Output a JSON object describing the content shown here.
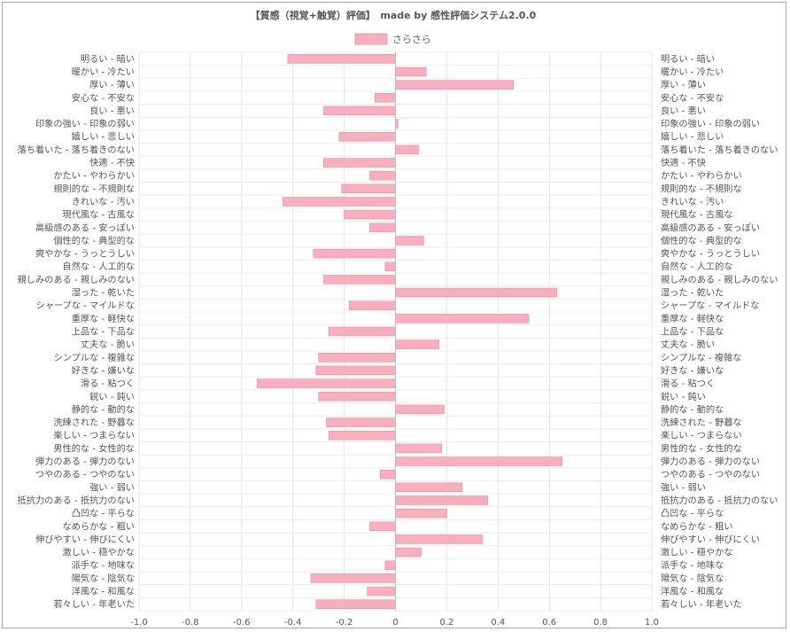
{
  "chart_data": {
    "type": "bar",
    "orientation": "horizontal",
    "title": "【質感（視覚+触覚）評価】　made by 感性評価システム2.0.0",
    "xlim": [
      -1.0,
      1.0
    ],
    "x_ticks": [
      "-1.0",
      "-0.8",
      "-0.6",
      "-0.4",
      "-0.2",
      "0",
      "0.2",
      "0.4",
      "0.6",
      "0.8",
      "1.0"
    ],
    "grid": true,
    "legend_position": "top",
    "bar_color": "#f6afbf",
    "bar_edge_color": "#ef8aa2",
    "categories": [
      "明るい - 暗い",
      "暖かい - 冷たい",
      "厚い - 薄い",
      "安心な - 不安な",
      "良い - 悪い",
      "印象の強い - 印象の弱い",
      "嬉しい - 悲しい",
      "落ち着いた - 落ち着きのない",
      "快適 - 不快",
      "かたい - やわらかい",
      "規則的な - 不規則な",
      "きれいな - 汚い",
      "現代風な - 古風な",
      "高級感のある - 安っぽい",
      "個性的な - 典型的な",
      "爽やかな - うっとうしい",
      "自然な - 人工的な",
      "親しみのある - 親しみのない",
      "湿った - 乾いた",
      "シャープな - マイルドな",
      "重厚な - 軽快な",
      "上品な - 下品な",
      "丈夫な - 脆い",
      "シンプルな - 複雑な",
      "好きな - 嫌いな",
      "滑る - 粘つく",
      "鋭い - 鈍い",
      "静的な - 動的な",
      "洗練された - 野暮な",
      "楽しい - つまらない",
      "男性的な - 女性的な",
      "弾力のある - 弾力のない",
      "つやのある - つやのない",
      "強い - 弱い",
      "抵抗力のある - 抵抗力のない",
      "凸凹な - 平らな",
      "なめらかな - 粗い",
      "伸びやすい - 伸びにくい",
      "激しい - 穏やかな",
      "派手な - 地味な",
      "陽気な - 陰気な",
      "洋風な - 和風な",
      "若々しい - 年老いた"
    ],
    "series": [
      {
        "name": "さらさら",
        "values": [
          -0.42,
          0.12,
          0.46,
          -0.08,
          -0.28,
          0.01,
          -0.22,
          0.09,
          -0.28,
          -0.1,
          -0.21,
          -0.44,
          -0.2,
          -0.1,
          0.11,
          -0.32,
          -0.04,
          -0.28,
          0.63,
          -0.18,
          0.52,
          -0.26,
          0.17,
          -0.3,
          -0.31,
          -0.54,
          -0.3,
          0.19,
          -0.27,
          -0.26,
          0.18,
          0.65,
          -0.06,
          0.26,
          0.36,
          0.2,
          -0.1,
          0.34,
          0.1,
          -0.04,
          -0.33,
          -0.11,
          -0.31
        ]
      }
    ]
  }
}
